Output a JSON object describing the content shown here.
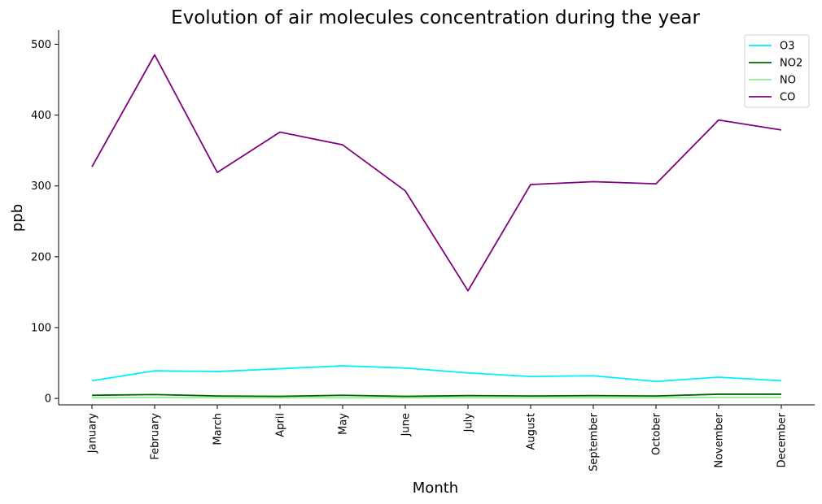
{
  "chart_data": {
    "type": "line",
    "title": "Evolution of air molecules concentration during the year",
    "xlabel": "Month",
    "ylabel": "ppb",
    "categories": [
      "January",
      "February",
      "March",
      "April",
      "May",
      "June",
      "July",
      "August",
      "September",
      "October",
      "November",
      "December"
    ],
    "ylim": [
      -9,
      520
    ],
    "yticks": [
      0,
      100,
      200,
      300,
      400,
      500
    ],
    "grid": false,
    "legend_position": "top-right",
    "series": [
      {
        "name": "O3",
        "color": "#00eeff",
        "values": [
          25,
          39,
          38,
          42,
          46,
          43,
          36,
          31,
          32,
          24,
          30,
          25
        ]
      },
      {
        "name": "NO2",
        "color": "#006400",
        "values": [
          4.5,
          5.5,
          3.5,
          3,
          4.5,
          3,
          4,
          3.5,
          4,
          3.5,
          6,
          6
        ]
      },
      {
        "name": "NO",
        "color": "#90ee90",
        "values": [
          1,
          1.5,
          1,
          1,
          1,
          1,
          1,
          1,
          1,
          1,
          1.5,
          1.5
        ]
      },
      {
        "name": "CO",
        "color": "#800080",
        "values": [
          327,
          485,
          319,
          376,
          358,
          293,
          152,
          302,
          306,
          303,
          393,
          379
        ]
      }
    ]
  }
}
